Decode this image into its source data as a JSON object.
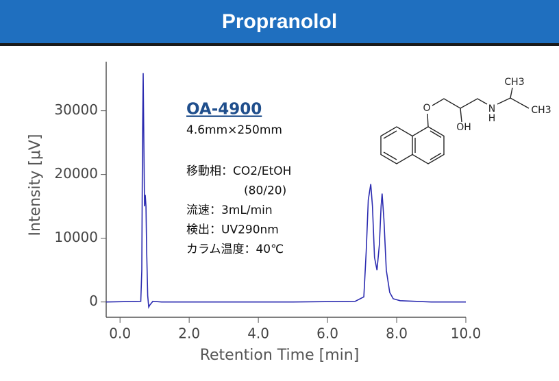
{
  "chart_data": {
    "type": "line",
    "title": "Propranolol",
    "x_label": "Retention Time [min]",
    "y_label": "Intensity [μV]",
    "x": [
      -0.4,
      0.6,
      0.63,
      0.65,
      0.67,
      0.69,
      0.71,
      0.73,
      0.75,
      0.77,
      0.8,
      0.83,
      0.86,
      0.95,
      1.2,
      3.0,
      5.0,
      6.8,
      7.05,
      7.12,
      7.18,
      7.25,
      7.3,
      7.36,
      7.43,
      7.5,
      7.55,
      7.58,
      7.63,
      7.7,
      7.8,
      7.9,
      8.1,
      9.0,
      10.0
    ],
    "values": [
      0,
      100,
      5000,
      25000,
      35900,
      25000,
      15000,
      16800,
      15000,
      8000,
      1000,
      -800,
      -500,
      100,
      0,
      0,
      0,
      100,
      800,
      8000,
      16000,
      18500,
      15000,
      7000,
      5000,
      9000,
      15000,
      17000,
      13000,
      5000,
      1500,
      500,
      200,
      0,
      0
    ],
    "color": "#2b2bb0",
    "xlim": [
      -0.4,
      10.0
    ],
    "ylim": [
      -2400,
      37700
    ],
    "xticks": [
      {
        "value": 0,
        "label": "0.0"
      },
      {
        "value": 2,
        "label": "2.0"
      },
      {
        "value": 4,
        "label": "4.0"
      },
      {
        "value": 6,
        "label": "6.0"
      },
      {
        "value": 8,
        "label": "8.0"
      },
      {
        "value": 10,
        "label": "10.0"
      }
    ],
    "yticks": [
      0,
      10000,
      20000,
      30000
    ],
    "grid": false,
    "column": "OA-4900",
    "annotations": [
      "4.6mm×250mm",
      "移動相：CO2/EtOH",
      "(80/20)",
      "流速：3mL/min",
      "検出：UV290nm",
      "カラム温度：40℃"
    ],
    "structure_labels": [
      "O",
      "OH",
      "N",
      "H",
      "CH3",
      "CH3"
    ]
  }
}
